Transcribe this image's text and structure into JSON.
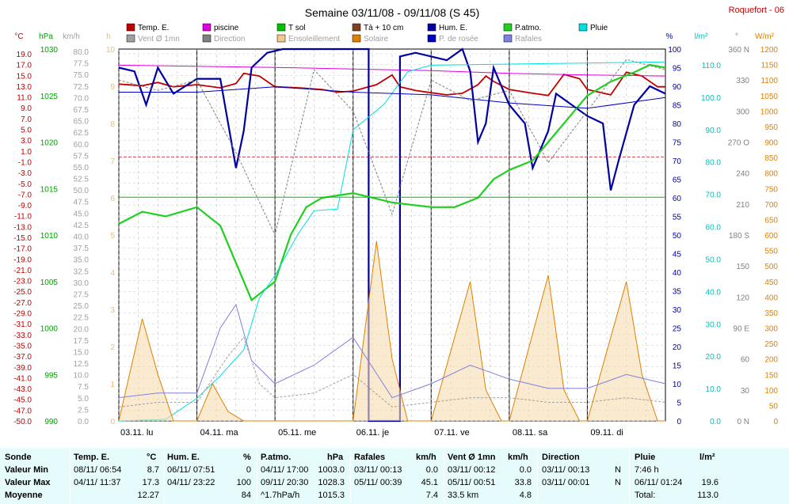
{
  "header": {
    "title": "Semaine 03/11/08 - 09/11/08 (S 45)",
    "station": "Roquefort - 06"
  },
  "legend": [
    {
      "label": "Temp. E.",
      "color": "#c00000"
    },
    {
      "label": "piscine",
      "color": "#e000e0"
    },
    {
      "label": "T sol",
      "color": "#00c000"
    },
    {
      "label": "Tà + 10 cm",
      "color": "#804020"
    },
    {
      "label": "Hum. E.",
      "color": "#0000a0"
    },
    {
      "label": "P.atmo.",
      "color": "#20d020"
    },
    {
      "label": "Pluie",
      "color": "#00e0e0"
    },
    {
      "label": "Vent Ø 1mn",
      "color": "#a0a0a0"
    },
    {
      "label": "Direction",
      "color": "#808080"
    },
    {
      "label": "Ensoleillement",
      "color": "#f0c890"
    },
    {
      "label": "Solaire",
      "color": "#e08000"
    },
    {
      "label": "P. de rosée",
      "color": "#0000c0"
    },
    {
      "label": "Rafales",
      "color": "#8080e0"
    }
  ],
  "units": {
    "temp": "°C",
    "press": "hPa",
    "wind": "km/h",
    "sun": "h",
    "hum": "%",
    "rain": "l/m²",
    "dir": "°",
    "solar": "W/m²"
  },
  "axis_ticks": {
    "temp": [
      "19.0",
      "17.0",
      "15.0",
      "13.0",
      "11.0",
      "9.0",
      "7.0",
      "5.0",
      "3.0",
      "1.0",
      "-1.0",
      "-3.0",
      "-5.0",
      "-7.0",
      "-9.0",
      "-11.0",
      "-13.0",
      "-15.0",
      "-17.0",
      "-19.0",
      "-21.0",
      "-23.0",
      "-25.0",
      "-27.0",
      "-29.0",
      "-31.0",
      "-33.0",
      "-35.0",
      "-37.0",
      "-39.0",
      "-41.0",
      "-43.0",
      "-45.0",
      "-47.0",
      "-50.0"
    ],
    "press": [
      "1030",
      "1025",
      "1020",
      "1015",
      "1010",
      "1005",
      "1000",
      "995",
      "990"
    ],
    "wind": [
      "80.0",
      "77.5",
      "75.0",
      "72.5",
      "70.0",
      "67.5",
      "65.0",
      "62.5",
      "60.0",
      "57.5",
      "55.0",
      "52.5",
      "50.0",
      "47.5",
      "45.0",
      "42.5",
      "40.0",
      "37.5",
      "35.0",
      "32.5",
      "30.0",
      "27.5",
      "25.0",
      "22.5",
      "20.0",
      "17.5",
      "15.0",
      "12.5",
      "10.0",
      "7.5",
      "5.0",
      "2.5",
      "0.0"
    ],
    "sun": [
      "10",
      "9",
      "8",
      "7",
      "6",
      "5",
      "4",
      "3",
      "2",
      "1",
      "0"
    ],
    "hum": [
      "100",
      "95",
      "90",
      "85",
      "80",
      "75",
      "70",
      "65",
      "60",
      "55",
      "50",
      "45",
      "40",
      "35",
      "30",
      "25",
      "20",
      "15",
      "10",
      "5",
      "0"
    ],
    "rain": [
      "110.0",
      "100.0",
      "90.0",
      "80.0",
      "70.0",
      "60.0",
      "50.0",
      "40.0",
      "30.0",
      "20.0",
      "10.0",
      "0.0"
    ],
    "dir": [
      "360 N",
      "330",
      "300",
      "270 O",
      "240",
      "210",
      "180 S",
      "150",
      "120",
      "90 E",
      "60",
      "30",
      "0 N"
    ],
    "solar": [
      "1200",
      "1150",
      "1100",
      "1050",
      "1000",
      "950",
      "900",
      "850",
      "800",
      "750",
      "700",
      "650",
      "600",
      "550",
      "500",
      "450",
      "400",
      "350",
      "300",
      "250",
      "200",
      "150",
      "100",
      "50",
      "0"
    ]
  },
  "days": [
    "03.11. lu",
    "04.11. ma",
    "05.11. me",
    "06.11. je",
    "07.11. ve",
    "08.11. sa",
    "09.11. di"
  ],
  "chart_data": {
    "type": "line",
    "title": "Semaine 03/11/08 - 09/11/08 (S 45)",
    "x_unit": "day of week (03/11/08 = 0)",
    "xlim": [
      0,
      7
    ],
    "ylim": {
      "temp": [
        -50,
        19
      ],
      "press": [
        990,
        1030
      ],
      "hum": [
        0,
        100
      ],
      "rain": [
        0,
        115
      ],
      "wind": [
        0,
        80
      ],
      "solar": [
        0,
        1200
      ],
      "dir": [
        0,
        360
      ],
      "sun": [
        0,
        10
      ]
    },
    "series": [
      {
        "name": "Temp. E.",
        "axis": "temp",
        "color": "#c00000",
        "points": [
          [
            0,
            12.5
          ],
          [
            0.3,
            12.2
          ],
          [
            0.5,
            12.8
          ],
          [
            0.7,
            12.0
          ],
          [
            1.0,
            12.4
          ],
          [
            1.3,
            11.8
          ],
          [
            1.5,
            12.6
          ],
          [
            1.6,
            14.5
          ],
          [
            1.8,
            14.0
          ],
          [
            2.0,
            12.0
          ],
          [
            2.3,
            11.8
          ],
          [
            2.6,
            11.5
          ],
          [
            2.8,
            11.0
          ],
          [
            3.0,
            11.2
          ],
          [
            3.3,
            12.4
          ],
          [
            3.5,
            14.2
          ],
          [
            3.6,
            12.0
          ],
          [
            3.8,
            11.3
          ],
          [
            4.0,
            10.9
          ],
          [
            4.2,
            10.5
          ],
          [
            4.4,
            10.8
          ],
          [
            4.6,
            12.4
          ],
          [
            4.7,
            14.0
          ],
          [
            4.8,
            13.0
          ],
          [
            5.0,
            11.5
          ],
          [
            5.3,
            10.8
          ],
          [
            5.5,
            10.4
          ],
          [
            5.7,
            14.3
          ],
          [
            5.9,
            13.5
          ],
          [
            6.0,
            11.5
          ],
          [
            6.3,
            10.5
          ],
          [
            6.5,
            14.7
          ],
          [
            6.7,
            14.0
          ],
          [
            6.9,
            12.0
          ],
          [
            7.0,
            12.0
          ]
        ]
      },
      {
        "name": "piscine",
        "axis": "temp",
        "color": "#e000e0",
        "points": [
          [
            0,
            16.0
          ],
          [
            1.0,
            15.8
          ],
          [
            2.0,
            15.6
          ],
          [
            3.0,
            15.3
          ],
          [
            4.0,
            15.0
          ],
          [
            5.0,
            14.5
          ],
          [
            6.0,
            14.2
          ],
          [
            7.0,
            14.0
          ]
        ]
      },
      {
        "name": "Hum. E.",
        "axis": "hum",
        "color": "#0000a0",
        "points": [
          [
            0,
            95
          ],
          [
            0.2,
            94
          ],
          [
            0.35,
            85
          ],
          [
            0.5,
            95
          ],
          [
            0.7,
            88
          ],
          [
            1.0,
            92
          ],
          [
            1.3,
            92
          ],
          [
            1.4,
            80
          ],
          [
            1.5,
            68
          ],
          [
            1.6,
            78
          ],
          [
            1.7,
            95
          ],
          [
            1.9,
            99
          ],
          [
            2.1,
            100
          ],
          [
            2.5,
            100
          ],
          [
            3.2,
            100
          ],
          [
            3.2,
            0
          ],
          [
            3.6,
            0
          ],
          [
            3.6,
            98
          ],
          [
            3.8,
            99
          ],
          [
            4.2,
            97
          ],
          [
            4.4,
            100
          ],
          [
            4.5,
            94
          ],
          [
            4.6,
            75
          ],
          [
            4.7,
            80
          ],
          [
            4.8,
            95
          ],
          [
            5.0,
            85
          ],
          [
            5.2,
            80
          ],
          [
            5.3,
            68
          ],
          [
            5.5,
            78
          ],
          [
            5.6,
            88
          ],
          [
            5.8,
            85
          ],
          [
            6.0,
            82
          ],
          [
            6.2,
            80
          ],
          [
            6.3,
            62
          ],
          [
            6.4,
            70
          ],
          [
            6.6,
            85
          ],
          [
            6.8,
            90
          ],
          [
            7.0,
            88
          ]
        ]
      },
      {
        "name": "P.atmo.",
        "axis": "press",
        "color": "#20d020",
        "points": [
          [
            0,
            1011.2
          ],
          [
            0.3,
            1012.5
          ],
          [
            0.6,
            1012.0
          ],
          [
            1.0,
            1013.0
          ],
          [
            1.3,
            1011.0
          ],
          [
            1.5,
            1007.0
          ],
          [
            1.7,
            1003.0
          ],
          [
            2.0,
            1005.0
          ],
          [
            2.2,
            1010.0
          ],
          [
            2.4,
            1013.0
          ],
          [
            2.6,
            1014.0
          ],
          [
            3.0,
            1014.5
          ],
          [
            3.5,
            1013.5
          ],
          [
            4.0,
            1013.0
          ],
          [
            4.3,
            1013.0
          ],
          [
            4.6,
            1014.0
          ],
          [
            4.8,
            1016.0
          ],
          [
            5.0,
            1017.0
          ],
          [
            5.3,
            1018.0
          ],
          [
            5.5,
            1020.0
          ],
          [
            5.8,
            1023.0
          ],
          [
            6.0,
            1025.0
          ],
          [
            6.3,
            1026.5
          ],
          [
            6.6,
            1027.5
          ],
          [
            6.8,
            1028.3
          ],
          [
            7.0,
            1028.0
          ]
        ]
      },
      {
        "name": "T sol",
        "axis": "temp",
        "color": "#00c000",
        "points": [
          [
            0,
            -8.5
          ],
          [
            7.0,
            -8.5
          ]
        ]
      },
      {
        "name": "Pluie",
        "axis": "rain",
        "color": "#00e0e0",
        "points": [
          [
            0,
            0
          ],
          [
            0.6,
            0.5
          ],
          [
            1.0,
            7.0
          ],
          [
            1.3,
            14.0
          ],
          [
            1.6,
            22.0
          ],
          [
            1.8,
            38.0
          ],
          [
            2.0,
            45.0
          ],
          [
            2.3,
            58.0
          ],
          [
            2.5,
            65.0
          ],
          [
            2.8,
            65.5
          ],
          [
            3.0,
            90.0
          ],
          [
            3.4,
            98.0
          ],
          [
            3.7,
            108.0
          ],
          [
            4.0,
            110.0
          ],
          [
            7.0,
            111.0
          ]
        ]
      },
      {
        "name": "P. de rosée",
        "axis": "temp",
        "color": "#0000c0",
        "points": [
          [
            0,
            11.0
          ],
          [
            1.0,
            11.0
          ],
          [
            2.0,
            12.0
          ],
          [
            3.0,
            11.0
          ],
          [
            4.0,
            10.5
          ],
          [
            5.0,
            9.0
          ],
          [
            6.0,
            8.0
          ],
          [
            7.0,
            10.0
          ]
        ]
      },
      {
        "name": "Solaire",
        "axis": "solar",
        "color": "#e08000",
        "points": [
          [
            0,
            0
          ],
          [
            0.3,
            330
          ],
          [
            0.5,
            150
          ],
          [
            0.7,
            0
          ],
          [
            1.0,
            0
          ],
          [
            1.2,
            120
          ],
          [
            1.4,
            30
          ],
          [
            1.6,
            0
          ],
          [
            2.0,
            0
          ],
          [
            2.5,
            0
          ],
          [
            3.0,
            0
          ],
          [
            3.3,
            580
          ],
          [
            3.5,
            200
          ],
          [
            3.7,
            0
          ],
          [
            4.0,
            0
          ],
          [
            4.5,
            450
          ],
          [
            4.7,
            100
          ],
          [
            4.9,
            0
          ],
          [
            5.0,
            0
          ],
          [
            5.5,
            470
          ],
          [
            5.7,
            100
          ],
          [
            5.9,
            0
          ],
          [
            6.0,
            0
          ],
          [
            6.5,
            450
          ],
          [
            6.7,
            150
          ],
          [
            6.9,
            0
          ],
          [
            7.0,
            0
          ]
        ]
      },
      {
        "name": "Rafales",
        "axis": "wind",
        "color": "#8080e0",
        "points": [
          [
            0,
            5
          ],
          [
            0.5,
            6
          ],
          [
            1.0,
            6
          ],
          [
            1.3,
            20
          ],
          [
            1.5,
            25
          ],
          [
            1.7,
            13
          ],
          [
            2.0,
            8
          ],
          [
            2.5,
            12
          ],
          [
            3.0,
            18
          ],
          [
            3.5,
            5
          ],
          [
            4.0,
            8
          ],
          [
            4.5,
            12
          ],
          [
            5.0,
            9
          ],
          [
            5.5,
            7
          ],
          [
            6.0,
            7
          ],
          [
            6.5,
            10
          ],
          [
            7.0,
            8
          ]
        ]
      },
      {
        "name": "Vent Ø 1mn",
        "axis": "wind",
        "color": "#a0a0a0",
        "points": [
          [
            0,
            3
          ],
          [
            0.5,
            4
          ],
          [
            1.0,
            4
          ],
          [
            1.4,
            14
          ],
          [
            1.6,
            18
          ],
          [
            1.8,
            8
          ],
          [
            2.0,
            5
          ],
          [
            2.5,
            6
          ],
          [
            3.0,
            10
          ],
          [
            3.5,
            3
          ],
          [
            4.0,
            4
          ],
          [
            4.5,
            5
          ],
          [
            5.0,
            5
          ],
          [
            5.5,
            4
          ],
          [
            6.0,
            4
          ],
          [
            6.5,
            5
          ],
          [
            7.0,
            4
          ]
        ]
      },
      {
        "name": "Direction",
        "axis": "dir",
        "color": "#808080",
        "points": [
          [
            0,
            330
          ],
          [
            0.5,
            320
          ],
          [
            1.0,
            330
          ],
          [
            1.5,
            260
          ],
          [
            2.0,
            180
          ],
          [
            2.5,
            340
          ],
          [
            3.0,
            300
          ],
          [
            3.5,
            200
          ],
          [
            4.0,
            330
          ],
          [
            4.5,
            310
          ],
          [
            5.0,
            320
          ],
          [
            5.5,
            250
          ],
          [
            6.0,
            300
          ],
          [
            6.5,
            350
          ],
          [
            7.0,
            340
          ]
        ]
      }
    ]
  },
  "table": {
    "sonde": {
      "title": "Sonde",
      "rows": [
        "Valeur Min",
        "Valeur Max",
        "Moyenne"
      ]
    },
    "temp": {
      "title": "Temp. E.",
      "unit": "°C",
      "rows": [
        [
          "08/11/ 06:54",
          "8.7"
        ],
        [
          "04/11/ 11:37",
          "17.3"
        ],
        [
          "",
          "12.27"
        ]
      ]
    },
    "hum": {
      "title": "Hum. E.",
      "unit": "%",
      "rows": [
        [
          "06/11/ 07:51",
          "0"
        ],
        [
          "04/11/ 23:22",
          "100"
        ],
        [
          "",
          "84"
        ]
      ]
    },
    "press": {
      "title": "P.atmo.",
      "unit": "hPa",
      "rows": [
        [
          "04/11/ 17:00",
          "1003.0"
        ],
        [
          "09/11/ 20:30",
          "1028.3"
        ],
        [
          "^1.7hPa/h",
          "1015.3"
        ]
      ]
    },
    "gust": {
      "title": "Rafales",
      "unit": "km/h",
      "rows": [
        [
          "03/11/ 00:13",
          "0.0"
        ],
        [
          "05/11/ 00:39",
          "45.1"
        ],
        [
          "",
          "7.4"
        ]
      ]
    },
    "wind": {
      "title": "Vent Ø 1mn",
      "unit": "km/h",
      "rows": [
        [
          "03/11/ 00:12",
          "0.0"
        ],
        [
          "05/11/ 00:51",
          "33.8"
        ],
        [
          "33.5 km",
          "4.8"
        ]
      ]
    },
    "dir": {
      "title": "Direction",
      "rows": [
        [
          "03/11/ 00:13",
          "N"
        ],
        [
          "03/11/ 00:01",
          "N"
        ],
        [
          "",
          ""
        ]
      ]
    },
    "rain": {
      "title": "Pluie",
      "unit": "l/m²",
      "rows": [
        [
          "7:46 h",
          ""
        ],
        [
          "06/11/ 01:24",
          "19.6"
        ],
        [
          "Total:",
          "113.0"
        ]
      ]
    }
  }
}
